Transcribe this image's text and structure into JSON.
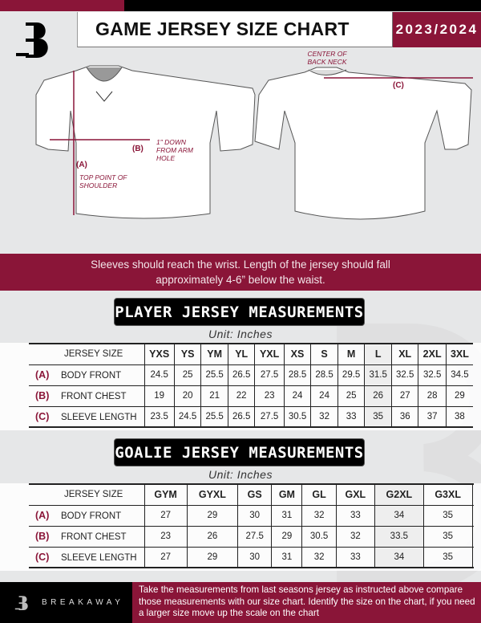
{
  "header": {
    "title": "GAME JERSEY SIZE CHART",
    "season": "2023/2024"
  },
  "colors": {
    "brand": "#8a1538",
    "background": "#e6e7e8"
  },
  "diagram": {
    "front_labels": {
      "a_code": "(A)",
      "a_note": "TOP POINT OF SHOULDER",
      "b_code": "(B)",
      "b_note": "1\" DOWN FROM ARM HOLE"
    },
    "back_labels": {
      "c_code": "(C)",
      "c_note": "CENTER OF BACK NECK"
    }
  },
  "banner": {
    "text_line1": "Sleeves should reach the wrist. Length of the jersey should fall",
    "text_line2": "approximately 4-6” below the waist."
  },
  "player": {
    "heading": "PLAYER JERSEY MEASUREMENTS",
    "unit": "Unit: Inches",
    "size_label": "JERSEY SIZE",
    "sizes": [
      "YXS",
      "YS",
      "YM",
      "YL",
      "YXL",
      "XS",
      "S",
      "M",
      "L",
      "XL",
      "2XL",
      "3XL"
    ],
    "rows": [
      {
        "code": "(A)",
        "label": "BODY FRONT",
        "values": [
          "24.5",
          "25",
          "25.5",
          "26.5",
          "27.5",
          "28.5",
          "28.5",
          "29.5",
          "31.5",
          "32.5",
          "32.5",
          "34.5"
        ]
      },
      {
        "code": "(B)",
        "label": "FRONT CHEST",
        "values": [
          "19",
          "20",
          "21",
          "22",
          "23",
          "24",
          "24",
          "25",
          "26",
          "27",
          "28",
          "29"
        ]
      },
      {
        "code": "(C)",
        "label": "SLEEVE LENGTH",
        "values": [
          "23.5",
          "24.5",
          "25.5",
          "26.5",
          "27.5",
          "30.5",
          "32",
          "33",
          "35",
          "36",
          "37",
          "38"
        ]
      }
    ]
  },
  "goalie": {
    "heading": "GOALIE JERSEY MEASUREMENTS",
    "unit": "Unit: Inches",
    "size_label": "JERSEY SIZE",
    "sizes": [
      "GYM",
      "GYXL",
      "GS",
      "GM",
      "GL",
      "GXL",
      "G2XL",
      "G3XL",
      ""
    ],
    "rows": [
      {
        "code": "(A)",
        "label": "BODY FRONT",
        "values": [
          "27",
          "29",
          "30",
          "31",
          "32",
          "33",
          "34",
          "35",
          ""
        ]
      },
      {
        "code": "(B)",
        "label": "FRONT CHEST",
        "values": [
          "23",
          "26",
          "27.5",
          "29",
          "30.5",
          "32",
          "33.5",
          "35",
          ""
        ]
      },
      {
        "code": "(C)",
        "label": "SLEEVE LENGTH",
        "values": [
          "27",
          "29",
          "30",
          "31",
          "32",
          "33",
          "34",
          "35",
          ""
        ]
      }
    ]
  },
  "footer": {
    "brand": "BREAKAWAY",
    "text": "Take the measurements from last seasons jersey as instructed above compare those measurements  with our size chart. Identify the size on the chart, if you need a larger size move up the scale on the chart"
  }
}
